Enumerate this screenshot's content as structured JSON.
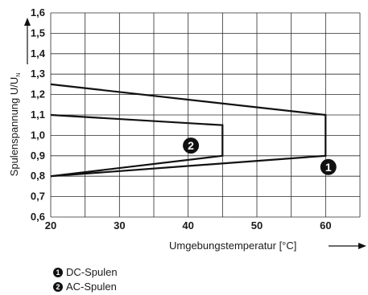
{
  "chart_data": {
    "type": "line",
    "xlabel": "Umgebungstemperatur [°C]",
    "ylabel": "Spulenspannung U/U",
    "ylabel_sub": "N",
    "xlim": [
      20,
      65
    ],
    "ylim": [
      0.6,
      1.6
    ],
    "x_ticks": [
      "20",
      "30",
      "40",
      "50",
      "60"
    ],
    "y_ticks": [
      "0,6",
      "0,7",
      "0,8",
      "0,9",
      "1,0",
      "1,1",
      "1,2",
      "1,3",
      "1,4",
      "1,5",
      "1,6"
    ],
    "grid": true,
    "series": [
      {
        "id": "1",
        "name": "DC-Spulen",
        "points": [
          [
            20,
            1.25
          ],
          [
            60,
            1.1
          ],
          [
            60,
            0.9
          ],
          [
            20,
            0.8
          ]
        ]
      },
      {
        "id": "2",
        "name": "AC-Spulen",
        "points": [
          [
            20,
            1.1
          ],
          [
            45,
            1.05
          ],
          [
            45,
            0.9
          ],
          [
            20,
            0.8
          ]
        ]
      }
    ],
    "markers": [
      {
        "label": "1",
        "x": 60.4,
        "y": 0.845
      },
      {
        "label": "2",
        "x": 40.4,
        "y": 0.95
      }
    ]
  },
  "legend": [
    {
      "num": "1",
      "text": "DC-Spulen"
    },
    {
      "num": "2",
      "text": "AC-Spulen"
    }
  ]
}
